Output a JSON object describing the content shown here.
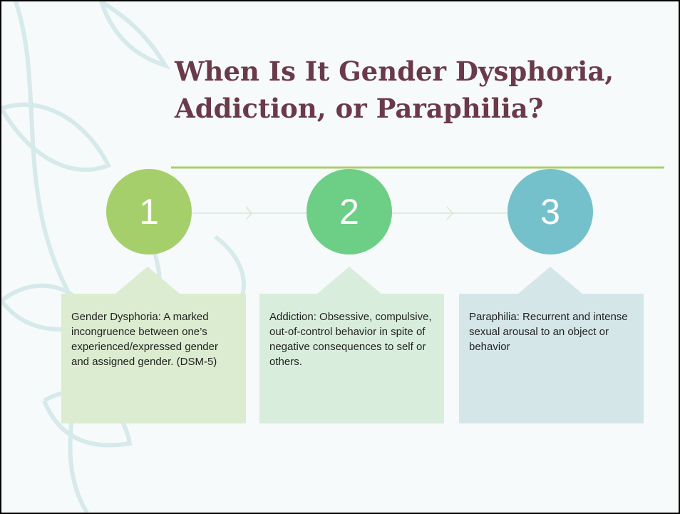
{
  "title": {
    "line1": "When Is It Gender Dysphoria,",
    "line2": "Addiction, or Paraphilia?"
  },
  "steps": [
    {
      "number": "1",
      "text": "Gender Dysphoria: A marked incongruence between one’s experienced/expressed gender and assigned gender. (DSM-5)"
    },
    {
      "number": "2",
      "text": "Addiction: Obsessive, compulsive, out-of-control behavior in spite of negative consequences to self or others."
    },
    {
      "number": "3",
      "text": "Paraphilia: Recurrent and intense sexual arousal to an object or behavior"
    }
  ]
}
